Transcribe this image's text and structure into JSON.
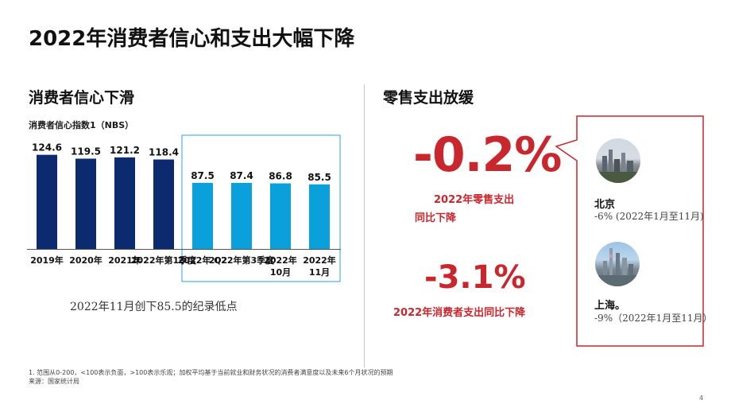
{
  "page_title": "2022年消费者信心和支出大幅下降",
  "left": {
    "title": "消费者信心下滑",
    "chart_subtitle": "消费者信心指数1（NBS）",
    "note": "2022年11月创下85.5的纪录低点"
  },
  "right": {
    "title": "零售支出放缓",
    "retail_value": "-0.2%",
    "retail_label_line1": "2022年零售支出",
    "retail_label_line2": "同比下降",
    "consumer_value": "-3.1%",
    "consumer_label": "2022年消费者支出同比下降",
    "cities": [
      {
        "name": "北京",
        "detail": "-6% (2022年1月至11月)"
      },
      {
        "name": "上海。",
        "detail": "-9%（2022年1月至11月）"
      }
    ]
  },
  "footnote": "1. 范围从0-200，<100表示负面，>100表示乐观；加权平均基于当前就业和财务状况的消费者满意度以及未来6个月状况的预期",
  "source": "来源：国家统计局",
  "page_number": "4",
  "colors": {
    "dark_bar": "#0b2a6f",
    "light_bar": "#0aa0dc",
    "highlight_box": "#29a3dc",
    "accent_red": "#c8272d"
  },
  "chart_data": {
    "type": "bar",
    "title": "",
    "xlabel": "",
    "ylabel": "",
    "categories": [
      "2019年",
      "2020年",
      "2021年",
      "2022年第1季度",
      "2022年 Q2",
      "2022年第3季度",
      "2022年10月",
      "2022年11月"
    ],
    "category_lines": [
      [
        "2019年"
      ],
      [
        "2020年"
      ],
      [
        "2021年"
      ],
      [
        "2022年第1季度"
      ],
      [
        "2022年 Q2"
      ],
      [
        "2022年第3季度"
      ],
      [
        "2022年",
        "10月"
      ],
      [
        "2022年",
        "11月"
      ]
    ],
    "values": [
      124.6,
      119.5,
      121.2,
      118.4,
      87.5,
      87.4,
      86.8,
      85.5
    ],
    "value_labels": [
      "124.6",
      "119.5",
      "121.2",
      "118.4",
      "87.5",
      "87.4",
      "86.8",
      "85.5"
    ],
    "highlight_from_index": 4,
    "grid": false,
    "legend": "none"
  }
}
